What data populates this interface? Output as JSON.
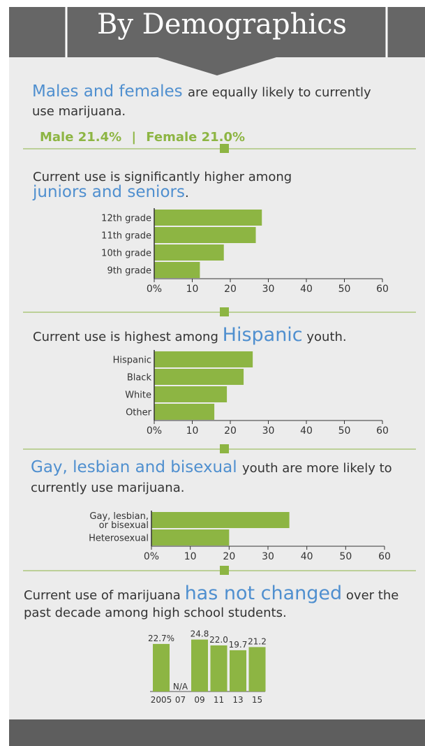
{
  "header": {
    "title": "By Demographics"
  },
  "sections": {
    "gender": {
      "highlight": "Males and females",
      "line1_rest": "are equally likely to currently",
      "line2": "use marijuana.",
      "male": "Male 21.4%",
      "separator": "|",
      "female": "Female 21.0%"
    },
    "grade": {
      "line1": "Current use is significantly higher among",
      "highlight": "juniors and seniors",
      "period": "."
    },
    "race": {
      "prefix": "Current use is highest among",
      "highlight": "Hispanic",
      "suffix": "youth."
    },
    "orientation": {
      "highlight": "Gay, lesbian and bisexual",
      "line1_rest": "youth are more likely to",
      "line2": "currently use marijuana."
    },
    "trend": {
      "line1_prefix": "Current use of marijuana",
      "highlight": "has not changed",
      "line1_rest": "over the",
      "line2": "past decade among high school students."
    }
  },
  "chart_data": [
    {
      "type": "bar",
      "orientation": "horizontal",
      "categories": [
        "12th grade",
        "11th grade",
        "10th grade",
        "9th grade"
      ],
      "values": [
        28.3,
        26.7,
        18.3,
        12.0
      ],
      "x_ticks": [
        "0%",
        "10",
        "20",
        "30",
        "40",
        "50",
        "60"
      ],
      "xlim": [
        0,
        60
      ],
      "color": "#8db543"
    },
    {
      "type": "bar",
      "orientation": "horizontal",
      "categories": [
        "Hispanic",
        "Black",
        "White",
        "Other"
      ],
      "values": [
        25.9,
        23.5,
        19.1,
        15.8
      ],
      "x_ticks": [
        "0%",
        "10",
        "20",
        "30",
        "40",
        "50",
        "60"
      ],
      "xlim": [
        0,
        60
      ],
      "color": "#8db543"
    },
    {
      "type": "bar",
      "orientation": "horizontal",
      "categories": [
        [
          "Gay, lesbian,",
          "or bisexual"
        ],
        [
          "Heterosexual"
        ]
      ],
      "values": [
        35.5,
        20.0
      ],
      "x_ticks": [
        "0%",
        "10",
        "20",
        "30",
        "40",
        "50",
        "60"
      ],
      "xlim": [
        0,
        60
      ],
      "color": "#8db543"
    },
    {
      "type": "bar",
      "orientation": "vertical",
      "categories": [
        "2005",
        "07",
        "09",
        "11",
        "13",
        "15"
      ],
      "values": [
        22.7,
        null,
        24.8,
        22.0,
        19.7,
        21.2
      ],
      "data_labels": [
        "22.7%",
        "N/A",
        "24.8",
        "22.0",
        "19.7",
        "21.2"
      ],
      "ylim": [
        0,
        25
      ],
      "color": "#8db543"
    }
  ],
  "colors": {
    "accent_blue": "#4f8fcf",
    "accent_green": "#8db543",
    "header_gray": "#666666",
    "divider": "#8db543"
  }
}
